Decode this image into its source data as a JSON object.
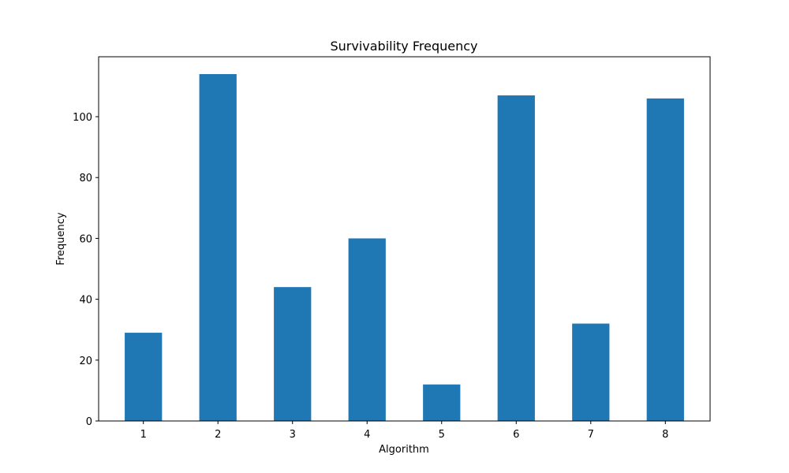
{
  "chart_data": {
    "type": "bar",
    "title": "Survivability Frequency",
    "xlabel": "Algorithm",
    "ylabel": "Frequency",
    "categories": [
      "1",
      "2",
      "3",
      "4",
      "5",
      "6",
      "7",
      "8"
    ],
    "values": [
      29,
      114,
      44,
      60,
      12,
      107,
      32,
      106
    ],
    "ylim": [
      0,
      119.7
    ],
    "yticks": [
      0,
      20,
      40,
      60,
      80,
      100
    ],
    "bar_color": "#1f77b4",
    "grid": false,
    "legend": "none"
  }
}
